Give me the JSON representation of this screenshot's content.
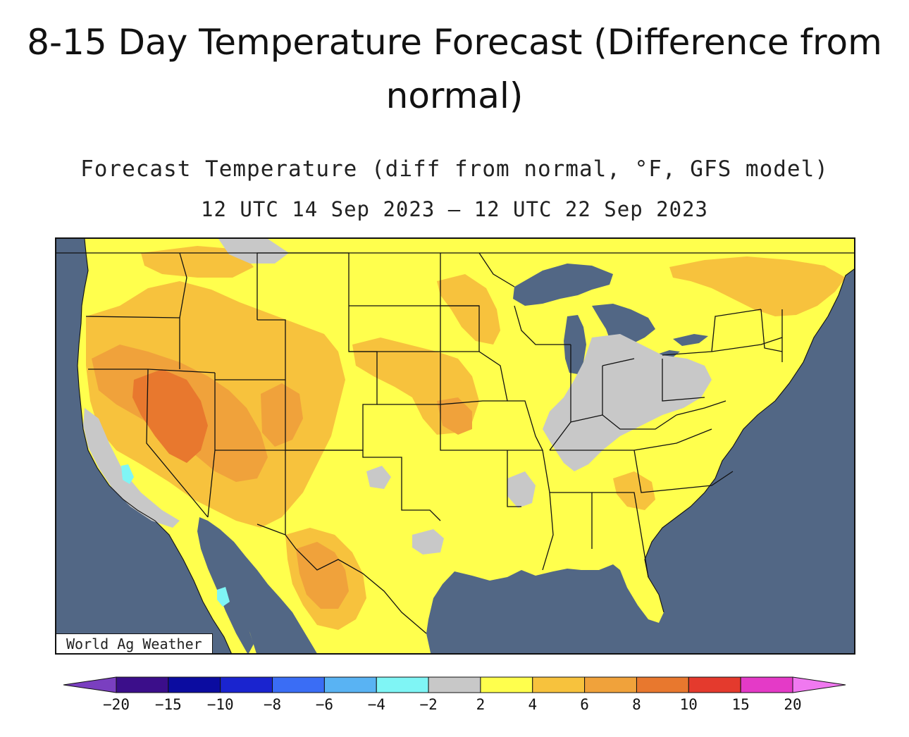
{
  "page": {
    "title": "8-15 Day Temperature Forecast (Difference from normal)"
  },
  "forecast": {
    "title": "Forecast Temperature (diff from normal, °F, GFS model)",
    "valid_period": "12 UTC 14 Sep 2023 – 12 UTC 22 Sep 2023"
  },
  "map": {
    "region": "Contiguous United States",
    "credit": "World Ag Weather",
    "colors": {
      "water": "#526785",
      "land_near_normal": "#c8c8c8",
      "plus_2_4": "#ffff4d",
      "plus_4_6": "#f7c23d",
      "plus_6_8": "#f0a23b",
      "plus_8_10": "#e8782e",
      "minus_2_4": "#7ff5f5"
    }
  },
  "legend": {
    "tick_labels": [
      "−20",
      "−15",
      "−10",
      "−8",
      "−6",
      "−4",
      "−2",
      "2",
      "4",
      "6",
      "8",
      "10",
      "15",
      "20"
    ],
    "colors": [
      "#7a3fc0",
      "#3b0e8a",
      "#0b0ca0",
      "#1a24cf",
      "#3a6df5",
      "#59b3f3",
      "#7ff5f5",
      "#c8c8c8",
      "#ffff4d",
      "#f7c23d",
      "#f0a23b",
      "#e8782e",
      "#e43a2d",
      "#e43ac7",
      "#f079f0"
    ]
  }
}
